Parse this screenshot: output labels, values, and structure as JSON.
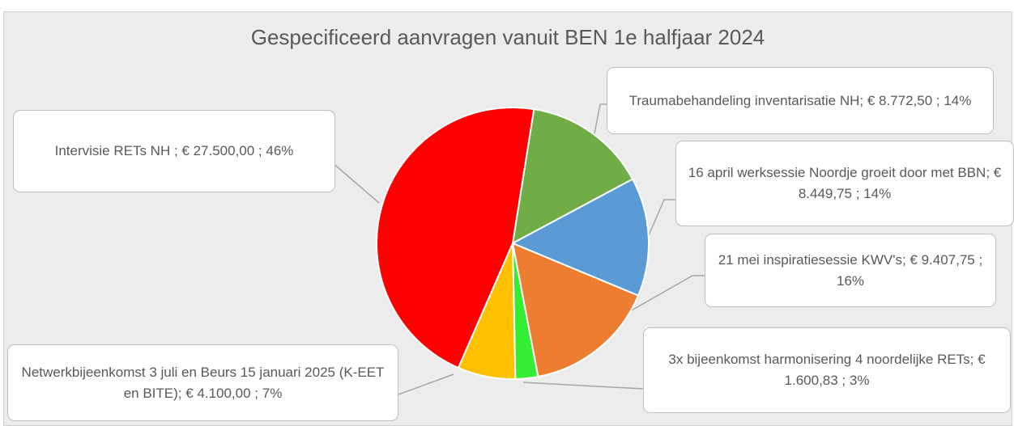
{
  "chart_data": {
    "type": "pie",
    "title": "Gespecificeerd  aanvragen vanuit BEN 1e halfjaar 2024",
    "categories": [
      "Traumabehandeling inventarisatie NH",
      "16 april werksessie Noordje groeit door met BBN",
      "21 mei inspiratiesessie KWV's",
      "3x bijeenkomst harmonisering 4 noordelijke RETs",
      "Netwerkbijeenkomst 3 juli en Beurs 15 januari 2025 (K-EET en BITE)",
      "Intervisie RETs NH"
    ],
    "values": [
      8772.5,
      8449.75,
      9407.75,
      1600.83,
      4100,
      27500
    ],
    "value_labels": [
      "Traumabehandeling inventarisatie NH;  € 8.772,50 ; 14%",
      "16 april werksessie Noordje groeit door met BBN;  € 8.449,75 ; 14%",
      "21 mei inspiratiesessie KWV's;  € 9.407,75 ; 16%",
      "3x bijeenkomst harmonisering 4 noordelijke RETs;  € 1.600,83 ; 3%",
      "Netwerkbijeenkomst 3 juli en Beurs 15 januari 2025 (K-EET en BITE);  € 4.100,00 ; 7%",
      "Intervisie RETs NH ;  € 27.500,00 ; 46%"
    ],
    "colors": [
      "#70ad47",
      "#5b9bd5",
      "#ed7d31",
      "#33ee33",
      "#ffc000",
      "#ff0000"
    ]
  }
}
